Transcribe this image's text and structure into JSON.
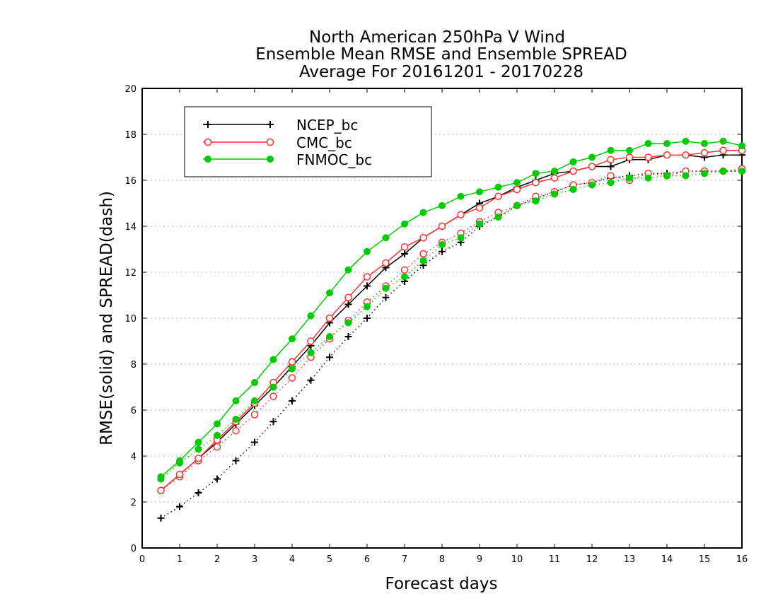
{
  "chart_data": {
    "type": "line",
    "title": [
      "North American 250hPa V Wind",
      "Ensemble Mean RMSE and Ensemble SPREAD",
      "Average For 20161201 - 20170228"
    ],
    "xlabel": "Forecast days",
    "ylabel": "RMSE(solid) and SPREAD(dash)",
    "xlim": [
      0,
      16
    ],
    "ylim": [
      0,
      20
    ],
    "x_ticks": [
      "0",
      "1",
      "2",
      "3",
      "4",
      "5",
      "6",
      "7",
      "8",
      "9",
      "10",
      "11",
      "12",
      "13",
      "14",
      "15",
      "16"
    ],
    "y_ticks": [
      "0",
      "2",
      "4",
      "6",
      "8",
      "10",
      "12",
      "14",
      "16",
      "18",
      "20"
    ],
    "grid": true,
    "legend_position": "top-left",
    "x": [
      0.5,
      1,
      1.5,
      2,
      2.5,
      3,
      3.5,
      4,
      4.5,
      5,
      5.5,
      6,
      6.5,
      7,
      7.5,
      8,
      8.5,
      9,
      9.5,
      10,
      10.5,
      11,
      11.5,
      12,
      12.5,
      13,
      13.5,
      14,
      14.5,
      15,
      15.5,
      16
    ],
    "series": [
      {
        "name": "NCEP_bc",
        "color": "#000000",
        "marker": "plus",
        "rmse": [
          2.5,
          3.2,
          3.9,
          4.6,
          5.4,
          6.2,
          7.0,
          7.9,
          8.8,
          9.8,
          10.6,
          11.4,
          12.2,
          12.8,
          13.5,
          14.0,
          14.5,
          15.0,
          15.3,
          15.7,
          16.0,
          16.3,
          16.4,
          16.6,
          16.6,
          16.9,
          16.9,
          17.1,
          17.1,
          17.0,
          17.1,
          17.1
        ],
        "spread": [
          1.3,
          1.8,
          2.4,
          3.0,
          3.8,
          4.6,
          5.5,
          6.4,
          7.3,
          8.3,
          9.2,
          10.0,
          10.9,
          11.6,
          12.3,
          12.9,
          13.3,
          14.0,
          14.4,
          14.9,
          15.2,
          15.5,
          15.8,
          15.9,
          16.1,
          16.2,
          16.3,
          16.3,
          16.4,
          16.4,
          16.4,
          16.4
        ]
      },
      {
        "name": "CMC_bc",
        "color": "#ff3333",
        "marker": "open-circle",
        "rmse": [
          2.5,
          3.2,
          3.9,
          4.7,
          5.5,
          6.3,
          7.2,
          8.1,
          9.0,
          10.0,
          10.9,
          11.8,
          12.4,
          13.1,
          13.5,
          14.0,
          14.5,
          14.8,
          15.3,
          15.6,
          15.9,
          16.1,
          16.4,
          16.6,
          16.9,
          17.0,
          17.0,
          17.1,
          17.1,
          17.2,
          17.3,
          17.3
        ],
        "spread": [
          2.5,
          3.1,
          3.8,
          4.4,
          5.1,
          5.8,
          6.6,
          7.4,
          8.3,
          9.1,
          9.9,
          10.7,
          11.4,
          12.1,
          12.8,
          13.3,
          13.7,
          14.2,
          14.6,
          14.9,
          15.3,
          15.5,
          15.8,
          15.9,
          16.2,
          16.0,
          16.3,
          16.2,
          16.4,
          16.4,
          16.4,
          16.5
        ]
      },
      {
        "name": "FNMOC_bc",
        "color": "#00cc00",
        "marker": "filled-circle",
        "rmse": [
          3.1,
          3.8,
          4.6,
          5.4,
          6.4,
          7.2,
          8.2,
          9.1,
          10.1,
          11.1,
          12.1,
          12.9,
          13.5,
          14.1,
          14.6,
          14.9,
          15.3,
          15.5,
          15.7,
          15.9,
          16.3,
          16.4,
          16.8,
          17.0,
          17.3,
          17.3,
          17.6,
          17.6,
          17.7,
          17.6,
          17.7,
          17.5
        ],
        "spread": [
          3.0,
          3.7,
          4.3,
          4.9,
          5.6,
          6.4,
          7.0,
          7.8,
          8.5,
          9.2,
          9.8,
          10.5,
          11.3,
          11.8,
          12.5,
          13.2,
          13.5,
          14.1,
          14.4,
          14.9,
          15.1,
          15.4,
          15.6,
          15.8,
          15.9,
          16.1,
          16.1,
          16.2,
          16.2,
          16.3,
          16.4,
          16.4
        ]
      }
    ]
  }
}
